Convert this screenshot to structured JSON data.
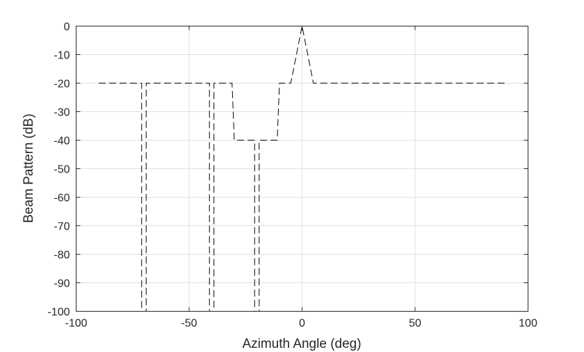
{
  "chart_data": {
    "type": "line",
    "title": "",
    "xlabel": "Azimuth Angle (deg)",
    "ylabel": "Beam Pattern (dB)",
    "xlim": [
      -100,
      100
    ],
    "ylim": [
      -100,
      0
    ],
    "xticks": [
      -100,
      -50,
      0,
      50,
      100
    ],
    "yticks": [
      0,
      -10,
      -20,
      -30,
      -40,
      -50,
      -60,
      -70,
      -80,
      -90,
      -100
    ],
    "grid": true,
    "legend": "none",
    "line_style": "dashed",
    "line_color": "#000000",
    "series": [
      {
        "x": [
          -90,
          -71,
          -71,
          -70,
          -69,
          -69,
          -41,
          -41,
          -40,
          -39,
          -39,
          -31,
          -30,
          -29,
          -21,
          -21,
          -20,
          -19,
          -19,
          -11,
          -10,
          -9,
          -5,
          0,
          5,
          9,
          90
        ],
        "y": [
          -20,
          -20,
          -100,
          -100,
          -100,
          -20,
          -20,
          -100,
          -100,
          -100,
          -20,
          -20,
          -40,
          -40,
          -40,
          -100,
          -100,
          -100,
          -40,
          -40,
          -20,
          -20,
          -20,
          0,
          -20,
          -20,
          -20
        ]
      }
    ]
  }
}
